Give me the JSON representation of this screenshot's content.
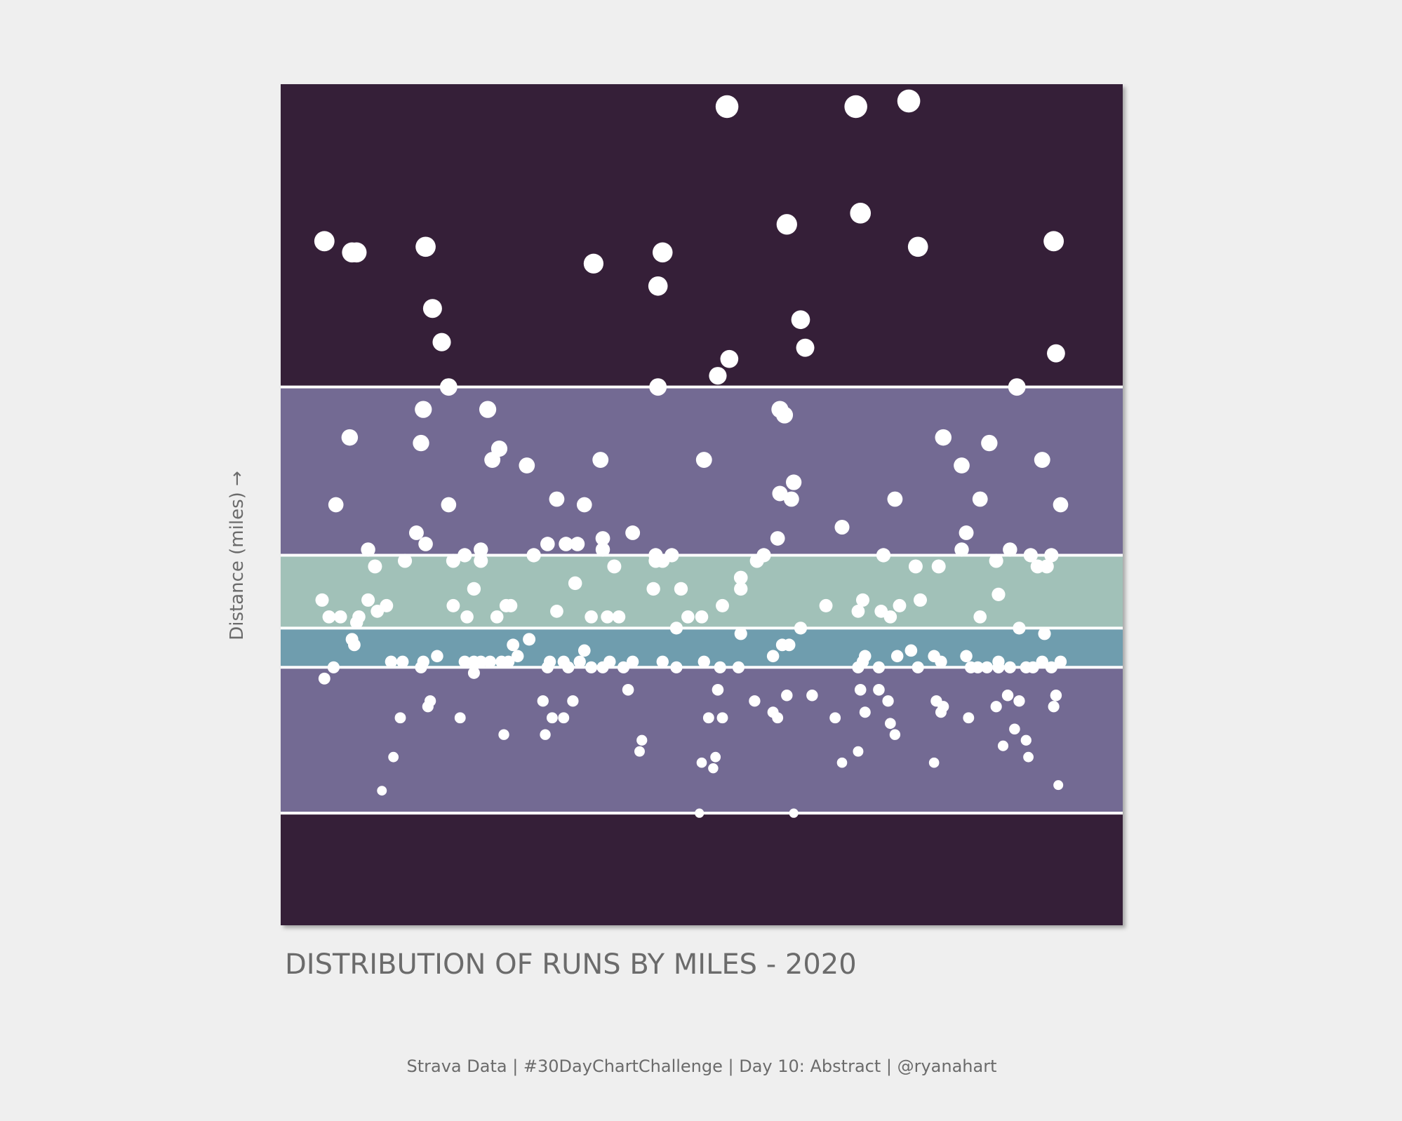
{
  "chart_data": {
    "type": "scatter",
    "title": "DISTRIBUTION OF RUNS BY MILES -  2020",
    "y_label": "Distance (miles) →",
    "color": "#ffffff",
    "xlim": [
      0,
      366
    ],
    "ylim": [
      0,
      15
    ],
    "bands": [
      {
        "from": 0,
        "to": 2,
        "color": "#351f38"
      },
      {
        "from": 2,
        "to": 4.6,
        "color": "#736a93"
      },
      {
        "from": 4.6,
        "to": 5.3,
        "color": "#6f9dae"
      },
      {
        "from": 5.3,
        "to": 6.6,
        "color": "#a1c1b8"
      },
      {
        "from": 6.6,
        "to": 9.6,
        "color": "#736a93"
      },
      {
        "from": 9.6,
        "to": 15,
        "color": "#351f38"
      }
    ],
    "x": [
      19,
      31,
      33,
      63,
      66,
      70,
      73,
      136,
      166,
      164,
      164,
      194,
      250,
      273,
      220,
      252,
      277,
      336,
      226,
      228,
      195,
      190,
      337,
      320,
      30,
      24,
      62,
      61,
      73,
      90,
      95,
      92,
      107,
      139,
      120,
      132,
      184,
      217,
      219,
      223,
      217,
      222,
      288,
      308,
      296,
      304,
      331,
      339,
      267,
      244,
      298,
      59,
      63,
      153,
      140,
      140,
      124,
      129,
      116,
      110,
      216,
      210,
      207,
      87,
      80,
      75,
      38,
      41,
      54,
      87,
      145,
      163,
      170,
      166,
      163,
      200,
      200,
      128,
      84,
      162,
      174,
      262,
      276,
      286,
      296,
      311,
      317,
      326,
      335,
      329,
      333,
      312,
      278,
      253,
      251,
      261,
      269,
      265,
      237,
      192,
      183,
      177,
      172,
      135,
      142,
      147,
      120,
      98,
      100,
      94,
      81,
      75,
      46,
      42,
      38,
      34,
      33,
      26,
      21,
      18,
      304,
      31,
      32,
      101,
      108,
      132,
      200,
      218,
      221,
      226,
      321,
      332,
      274,
      268,
      254,
      214,
      23,
      48,
      53,
      61,
      62,
      68,
      80,
      84,
      87,
      91,
      96,
      99,
      103,
      117,
      116,
      123,
      125,
      130,
      135,
      140,
      143,
      149,
      153,
      166,
      172,
      184,
      191,
      199,
      251,
      253,
      260,
      277,
      284,
      287,
      298,
      300,
      303,
      307,
      312,
      312,
      317,
      324,
      327,
      331,
      335,
      339,
      84,
      19,
      151,
      190,
      220,
      231,
      252,
      260,
      264,
      285,
      288,
      287,
      316,
      321,
      311,
      337,
      336,
      114,
      127,
      65,
      64,
      52,
      78,
      118,
      123,
      206,
      214,
      216,
      186,
      192,
      241,
      254,
      265,
      267,
      299,
      319,
      314,
      324,
      325,
      115,
      97,
      157,
      156,
      251,
      49,
      183,
      188,
      189,
      244,
      284,
      44,
      338,
      182,
      223
    ],
    "values": [
      12.2,
      12.0,
      12.0,
      12.1,
      11.0,
      10.4,
      9.6,
      11.8,
      12.0,
      11.4,
      9.6,
      14.6,
      14.6,
      14.7,
      12.5,
      12.7,
      12.1,
      12.2,
      10.8,
      10.3,
      10.1,
      9.8,
      10.2,
      9.6,
      8.7,
      7.5,
      9.2,
      8.6,
      7.5,
      9.2,
      8.5,
      8.3,
      8.2,
      8.3,
      7.6,
      7.5,
      8.3,
      9.2,
      9.1,
      7.9,
      7.7,
      7.6,
      8.7,
      8.6,
      8.2,
      7.6,
      8.3,
      7.5,
      7.6,
      7.1,
      7.0,
      7.0,
      6.8,
      7.0,
      6.9,
      6.7,
      6.8,
      6.8,
      6.8,
      6.6,
      6.9,
      6.6,
      6.5,
      6.7,
      6.6,
      6.5,
      6.7,
      6.4,
      6.5,
      6.5,
      6.4,
      6.6,
      6.6,
      6.5,
      6.5,
      6.2,
      6.0,
      6.1,
      6.0,
      6.0,
      6.0,
      6.6,
      6.4,
      6.4,
      6.7,
      6.5,
      6.7,
      6.6,
      6.6,
      6.4,
      6.4,
      5.9,
      5.8,
      5.8,
      5.6,
      5.6,
      5.7,
      5.5,
      5.7,
      5.7,
      5.5,
      5.5,
      5.3,
      5.5,
      5.5,
      5.5,
      5.6,
      5.7,
      5.7,
      5.5,
      5.5,
      5.7,
      5.7,
      5.6,
      5.8,
      5.5,
      5.4,
      5.5,
      5.5,
      5.8,
      5.5,
      5.1,
      5.0,
      5.0,
      5.1,
      4.9,
      5.2,
      5.0,
      5.0,
      5.3,
      5.3,
      5.2,
      4.9,
      4.8,
      4.8,
      4.8,
      4.6,
      4.7,
      4.7,
      4.6,
      4.7,
      4.8,
      4.7,
      4.7,
      4.7,
      4.7,
      4.7,
      4.7,
      4.8,
      4.7,
      4.6,
      4.7,
      4.6,
      4.7,
      4.6,
      4.6,
      4.7,
      4.6,
      4.7,
      4.7,
      4.6,
      4.7,
      4.6,
      4.6,
      4.6,
      4.7,
      4.6,
      4.6,
      4.8,
      4.7,
      4.8,
      4.6,
      4.6,
      4.6,
      4.7,
      4.6,
      4.6,
      4.6,
      4.6,
      4.7,
      4.6,
      4.7,
      4.5,
      4.4,
      4.2,
      4.2,
      4.1,
      4.1,
      4.2,
      4.2,
      4.0,
      4.0,
      3.9,
      3.8,
      4.1,
      4.0,
      3.9,
      4.1,
      3.9,
      4.0,
      4.0,
      4.0,
      3.9,
      3.7,
      3.7,
      3.7,
      3.7,
      4.0,
      3.8,
      3.7,
      3.7,
      3.7,
      3.7,
      3.8,
      3.6,
      3.4,
      3.7,
      3.5,
      3.2,
      3.3,
      3.0,
      3.4,
      3.4,
      3.3,
      3.1,
      3.1,
      3.0,
      2.9,
      2.8,
      3.0,
      2.9,
      2.9,
      2.4,
      2.5,
      2.0,
      2.0
    ]
  },
  "footer": "Strava Data | #30DayChartChallenge | Day 10: Abstract | @ryanahart"
}
